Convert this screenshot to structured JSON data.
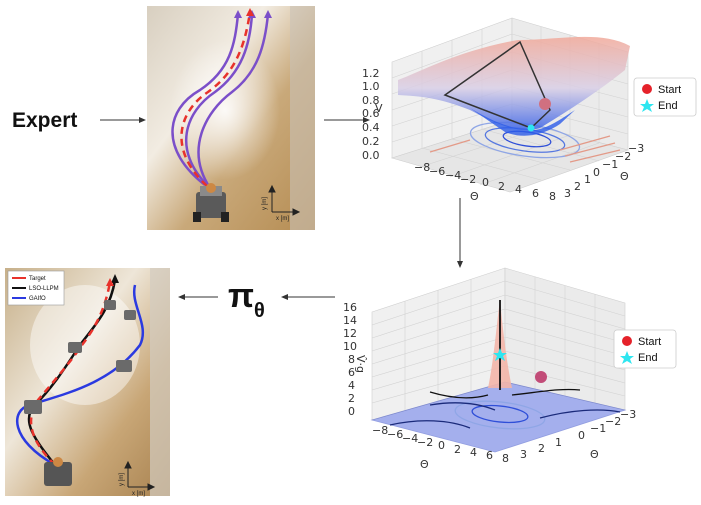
{
  "labels": {
    "expert": "Expert",
    "policy_symbol": "π",
    "policy_subscript": "θ"
  },
  "photo_top": {
    "axis_y": "y [m]",
    "axis_x": "x [m]"
  },
  "photo_bottom": {
    "legend": [
      "Target",
      "LSO-LLPM",
      "GAIfO"
    ],
    "axis_y": "y [m]",
    "axis_x": "x [m]"
  },
  "plot_top": {
    "zlabel": "V",
    "xlabel": "Θ",
    "ylabel": "Θ",
    "zticks": [
      "1.2",
      "1.0",
      "0.8",
      "0.6",
      "0.4",
      "0.2",
      "0.0"
    ],
    "xticks": [
      "−8",
      "−6",
      "−4",
      "−2",
      "0",
      "2",
      "4",
      "6",
      "8"
    ],
    "yticks": [
      "−3",
      "−2",
      "−1",
      "0",
      "1",
      "2",
      "3"
    ],
    "legend": [
      "Start",
      "End"
    ]
  },
  "plot_bottom": {
    "zlabel": "V̂·g",
    "xlabel": "Θ",
    "ylabel": "Θ",
    "zticks": [
      "16",
      "14",
      "12",
      "10",
      "8",
      "6",
      "4",
      "2",
      "0"
    ],
    "xticks": [
      "−8",
      "−6",
      "−4",
      "−2",
      "0",
      "2",
      "4",
      "6",
      "8"
    ],
    "yticks": [
      "−3",
      "−2",
      "−1",
      "0",
      "1",
      "2",
      "3"
    ],
    "legend": [
      "Start",
      "End"
    ]
  },
  "colors": {
    "expert_path": "#7b4fc9",
    "target": "#e8322b",
    "lso_llpm": "#111111",
    "gaifo": "#2b3ae0",
    "start": "#e5222a",
    "end": "#2ee6f0"
  }
}
